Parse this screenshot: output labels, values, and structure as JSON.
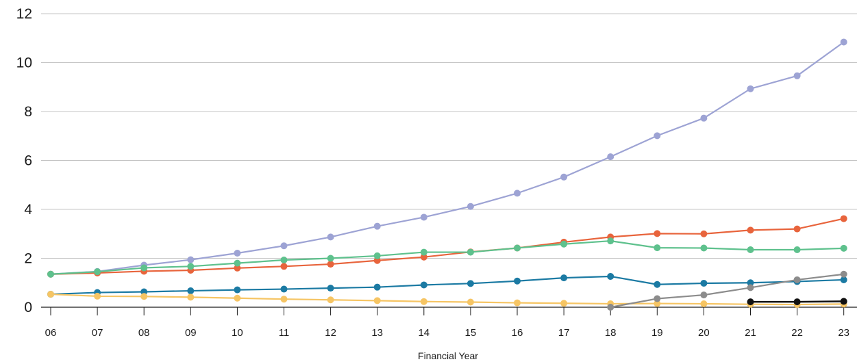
{
  "chart_data": {
    "type": "line",
    "title": "",
    "xlabel": "Financial Year",
    "ylabel": "",
    "categories": [
      "06",
      "07",
      "08",
      "09",
      "10",
      "11",
      "12",
      "13",
      "14",
      "15",
      "16",
      "17",
      "18",
      "19",
      "20",
      "21",
      "22",
      "23"
    ],
    "ylim": [
      0,
      12
    ],
    "yticks": [
      0,
      2,
      4,
      6,
      8,
      10,
      12
    ],
    "grid": true,
    "legend": "none",
    "series": [
      {
        "color": "#9da3d4",
        "values": [
          1.35,
          1.46,
          1.72,
          1.94,
          2.21,
          2.51,
          2.87,
          3.31,
          3.68,
          4.12,
          4.66,
          5.32,
          6.15,
          7.01,
          7.73,
          8.93,
          9.46,
          10.84
        ]
      },
      {
        "color": "#e8643c",
        "values": [
          1.35,
          1.4,
          1.47,
          1.51,
          1.6,
          1.67,
          1.76,
          1.91,
          2.05,
          2.26,
          2.42,
          2.66,
          2.87,
          3.01,
          3.0,
          3.15,
          3.2,
          3.62
        ]
      },
      {
        "color": "#5ec18d",
        "values": [
          1.35,
          1.45,
          1.61,
          1.67,
          1.8,
          1.93,
          2.0,
          2.1,
          2.25,
          2.25,
          2.42,
          2.58,
          2.71,
          2.43,
          2.42,
          2.35,
          2.35,
          2.41
        ]
      },
      {
        "color": "#1b7aa3",
        "values": [
          0.53,
          0.6,
          0.63,
          0.67,
          0.71,
          0.74,
          0.78,
          0.82,
          0.91,
          0.97,
          1.07,
          1.2,
          1.26,
          0.93,
          0.98,
          1.0,
          1.05,
          1.12
        ]
      },
      {
        "color": "#f6c564",
        "values": [
          0.53,
          0.45,
          0.44,
          0.41,
          0.37,
          0.33,
          0.3,
          0.27,
          0.23,
          0.21,
          0.18,
          0.16,
          0.14,
          0.15,
          0.14,
          0.12,
          0.11,
          0.13
        ]
      },
      {
        "color": "#8c8c8c",
        "values": [
          null,
          null,
          null,
          null,
          null,
          null,
          null,
          null,
          null,
          null,
          null,
          null,
          0.0,
          0.35,
          0.5,
          0.8,
          1.12,
          1.35
        ]
      },
      {
        "color": "#111111",
        "values": [
          null,
          null,
          null,
          null,
          null,
          null,
          null,
          null,
          null,
          null,
          null,
          null,
          null,
          null,
          null,
          0.22,
          0.22,
          0.24
        ]
      }
    ]
  }
}
